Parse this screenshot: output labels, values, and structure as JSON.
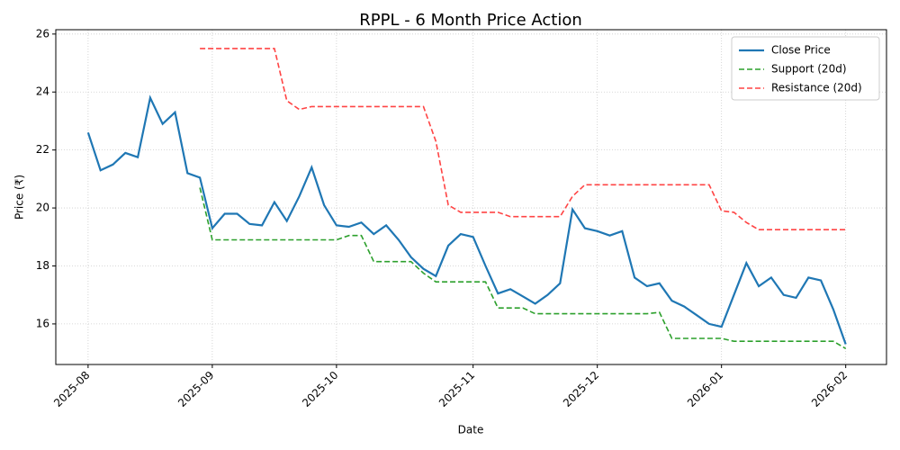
{
  "chart_data": {
    "type": "line",
    "title": "RPPL - 6 Month Price Action",
    "x_label": "Date",
    "y_label": "Price (₹)",
    "categories": [
      "2025-08",
      null,
      null,
      null,
      null,
      null,
      null,
      null,
      null,
      null,
      "2025-09",
      null,
      null,
      null,
      null,
      null,
      null,
      null,
      null,
      null,
      "2025-10",
      null,
      null,
      null,
      null,
      null,
      null,
      null,
      null,
      null,
      null,
      "2025-11",
      null,
      null,
      null,
      null,
      null,
      null,
      null,
      null,
      null,
      "2025-12",
      null,
      null,
      null,
      null,
      null,
      null,
      null,
      null,
      null,
      "2026-01",
      null,
      null,
      null,
      null,
      null,
      null,
      null,
      null,
      null,
      "2026-02"
    ],
    "series": [
      {
        "name": "Close Price",
        "color": "#1f77b4",
        "dash": false,
        "values": [
          22.6,
          21.3,
          21.5,
          21.9,
          21.75,
          23.8,
          22.9,
          23.3,
          21.2,
          21.05,
          19.3,
          19.8,
          19.8,
          19.45,
          19.4,
          20.2,
          19.55,
          20.4,
          21.4,
          20.1,
          19.4,
          19.35,
          19.5,
          19.1,
          19.4,
          18.9,
          18.3,
          17.9,
          17.65,
          18.7,
          19.1,
          19.0,
          18.0,
          17.05,
          17.2,
          16.95,
          16.7,
          17.0,
          17.4,
          19.95,
          19.3,
          19.2,
          19.05,
          19.2,
          17.6,
          17.3,
          17.4,
          16.8,
          16.6,
          16.3,
          16.0,
          15.9,
          17.0,
          18.1,
          17.3,
          17.6,
          17.0,
          16.9,
          17.6,
          17.5,
          16.5,
          15.3
        ]
      },
      {
        "name": "Support (20d)",
        "color": "#2ca02c",
        "dash": true,
        "values": [
          null,
          null,
          null,
          null,
          null,
          null,
          null,
          null,
          null,
          20.7,
          18.9,
          18.9,
          18.9,
          18.9,
          18.9,
          18.9,
          18.9,
          18.9,
          18.9,
          18.9,
          18.9,
          19.05,
          19.05,
          18.15,
          18.15,
          18.15,
          18.15,
          17.75,
          17.45,
          17.45,
          17.45,
          17.45,
          17.45,
          16.55,
          16.55,
          16.55,
          16.35,
          16.35,
          16.35,
          16.35,
          16.35,
          16.35,
          16.35,
          16.35,
          16.35,
          16.35,
          16.4,
          15.5,
          15.5,
          15.5,
          15.5,
          15.5,
          15.4,
          15.4,
          15.4,
          15.4,
          15.4,
          15.4,
          15.4,
          15.4,
          15.4,
          15.15
        ]
      },
      {
        "name": "Resistance (20d)",
        "color": "#ff4444",
        "dash": true,
        "values": [
          null,
          null,
          null,
          null,
          null,
          null,
          null,
          null,
          null,
          25.5,
          25.5,
          25.5,
          25.5,
          25.5,
          25.5,
          25.5,
          23.7,
          23.4,
          23.5,
          23.5,
          23.5,
          23.5,
          23.5,
          23.5,
          23.5,
          23.5,
          23.5,
          23.5,
          22.3,
          20.1,
          19.85,
          19.85,
          19.85,
          19.85,
          19.7,
          19.7,
          19.7,
          19.7,
          19.7,
          20.4,
          20.8,
          20.8,
          20.8,
          20.8,
          20.8,
          20.8,
          20.8,
          20.8,
          20.8,
          20.8,
          20.8,
          19.9,
          19.85,
          19.5,
          19.25,
          19.25,
          19.25,
          19.25,
          19.25,
          19.25,
          19.25,
          19.25
        ]
      }
    ],
    "ylim": [
      14.6,
      26.15
    ],
    "yticks": [
      16,
      18,
      20,
      22,
      24,
      26
    ],
    "grid": true,
    "legend": "upper right"
  }
}
